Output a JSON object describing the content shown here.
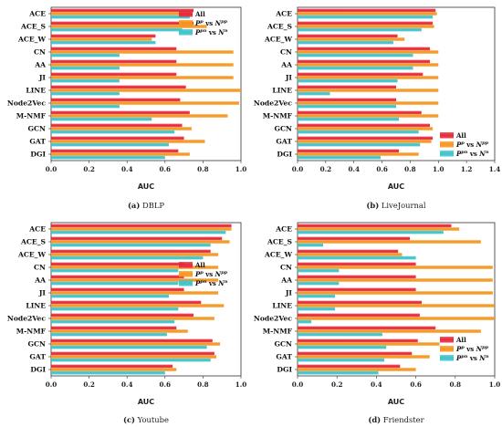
{
  "legend": {
    "all": "All",
    "pp": [
      "P",
      "p",
      " vs ",
      "N",
      "pp"
    ],
    "pn": [
      "P",
      "pn",
      " vs ",
      "N",
      "n"
    ]
  },
  "colors": {
    "all": "#e8283a",
    "pp": "#f7961d",
    "pn": "#3cc3cc"
  },
  "chart_data": [
    {
      "type": "bar",
      "orientation": "horizontal",
      "caption_letter": "(a)",
      "caption_name": "DBLP",
      "xlabel": "AUC",
      "xlim": [
        0,
        1.0
      ],
      "xticks": [
        "0.0",
        "0.2",
        "0.4",
        "0.6",
        "0.8",
        "1.0"
      ],
      "xtick_values": [
        0,
        0.2,
        0.4,
        0.6,
        0.8,
        1.0
      ],
      "legend_position": "top-right",
      "categories": [
        "ACE",
        "ACE_S",
        "ACE_W",
        "CN",
        "AA",
        "JI",
        "LINE",
        "Node2Vec",
        "M-NMF",
        "GCN",
        "GAT",
        "DGI"
      ],
      "series": [
        {
          "name": "All",
          "values": [
            0.75,
            0.75,
            0.55,
            0.66,
            0.66,
            0.66,
            0.71,
            0.68,
            0.73,
            0.69,
            0.7,
            0.67
          ]
        },
        {
          "name": "pp",
          "values": [
            0.74,
            0.82,
            0.53,
            0.96,
            0.96,
            0.96,
            1.0,
            0.99,
            0.93,
            0.74,
            0.81,
            0.73
          ]
        },
        {
          "name": "pn",
          "values": [
            0.73,
            0.69,
            0.55,
            0.36,
            0.36,
            0.36,
            0.36,
            0.36,
            0.53,
            0.65,
            0.62,
            0.6
          ]
        }
      ]
    },
    {
      "type": "bar",
      "orientation": "horizontal",
      "caption_letter": "(b)",
      "caption_name": "LiveJournal",
      "xlabel": "AUC",
      "xlim": [
        0,
        1.4
      ],
      "xticks": [
        "0.0",
        "0.2",
        "0.4",
        "0.6",
        "0.8",
        "1.0",
        "1.2",
        "1.4"
      ],
      "xtick_values": [
        0,
        0.2,
        0.4,
        0.6,
        0.8,
        1.0,
        1.2,
        1.4
      ],
      "legend_position": "bottom-right",
      "categories": [
        "ACE",
        "ACE_S",
        "ACE_W",
        "CN",
        "AA",
        "JI",
        "LINE",
        "Node2Vec",
        "M-NMF",
        "GCN",
        "GAT",
        "DGI"
      ],
      "series": [
        {
          "name": "All",
          "values": [
            0.98,
            0.96,
            0.71,
            0.94,
            0.94,
            0.89,
            0.7,
            0.7,
            0.88,
            0.94,
            0.96,
            0.72
          ]
        },
        {
          "name": "pp",
          "values": [
            0.99,
            0.97,
            0.76,
            1.0,
            1.0,
            1.0,
            1.0,
            1.0,
            1.0,
            0.96,
            0.95,
            0.86
          ]
        },
        {
          "name": "pn",
          "values": [
            0.96,
            0.88,
            0.68,
            0.82,
            0.82,
            0.71,
            0.23,
            0.7,
            0.72,
            0.86,
            0.87,
            0.59
          ]
        }
      ]
    },
    {
      "type": "bar",
      "orientation": "horizontal",
      "caption_letter": "(c)",
      "caption_name": "Youtube",
      "xlabel": "AUC",
      "xlim": [
        0,
        1.0
      ],
      "xticks": [
        "0.0",
        "0.2",
        "0.4",
        "0.6",
        "0.8",
        "1.0"
      ],
      "xtick_values": [
        0,
        0.2,
        0.4,
        0.6,
        0.8,
        1.0
      ],
      "legend_position": "top-right",
      "categories": [
        "ACE",
        "ACE_S",
        "ACE_W",
        "CN",
        "AA",
        "JI",
        "LINE",
        "Node2Vec",
        "M-NMF",
        "GCN",
        "GAT",
        "DGI"
      ],
      "series": [
        {
          "name": "All",
          "values": [
            0.95,
            0.9,
            0.84,
            0.7,
            0.7,
            0.7,
            0.79,
            0.75,
            0.66,
            0.85,
            0.86,
            0.64
          ]
        },
        {
          "name": "pp",
          "values": [
            0.95,
            0.94,
            0.88,
            0.88,
            0.88,
            0.88,
            0.91,
            0.86,
            0.72,
            0.89,
            0.87,
            0.66
          ]
        },
        {
          "name": "pn",
          "values": [
            0.92,
            0.84,
            0.8,
            0.67,
            0.67,
            0.62,
            0.67,
            0.65,
            0.61,
            0.82,
            0.84,
            0.6
          ]
        }
      ]
    },
    {
      "type": "bar",
      "orientation": "horizontal",
      "caption_letter": "(d)",
      "caption_name": "Friendster",
      "xlabel": "AUC",
      "xlim": [
        0,
        1.0
      ],
      "xticks": [
        "0.0",
        "0.2",
        "0.4",
        "0.6",
        "0.8",
        "1.0"
      ],
      "xtick_values": [
        0,
        0.2,
        0.4,
        0.6,
        0.8,
        1.0
      ],
      "legend_position": "bottom-right",
      "categories": [
        "ACE",
        "ACE_S",
        "ACE_W",
        "CN",
        "AA",
        "JI",
        "LINE",
        "Node2Vec",
        "M-NMF",
        "GCN",
        "GAT",
        "DGI"
      ],
      "series": [
        {
          "name": "All",
          "values": [
            0.78,
            0.57,
            0.51,
            0.6,
            0.6,
            0.6,
            0.63,
            0.62,
            0.7,
            0.61,
            0.58,
            0.52
          ]
        },
        {
          "name": "pp",
          "values": [
            0.82,
            0.93,
            0.53,
            0.99,
            0.99,
            0.99,
            1.0,
            1.0,
            0.93,
            0.72,
            0.67,
            0.6
          ]
        },
        {
          "name": "pn",
          "values": [
            0.74,
            0.13,
            0.6,
            0.21,
            0.21,
            0.19,
            0.19,
            0.07,
            0.43,
            0.45,
            0.44,
            0.41
          ]
        }
      ]
    }
  ]
}
